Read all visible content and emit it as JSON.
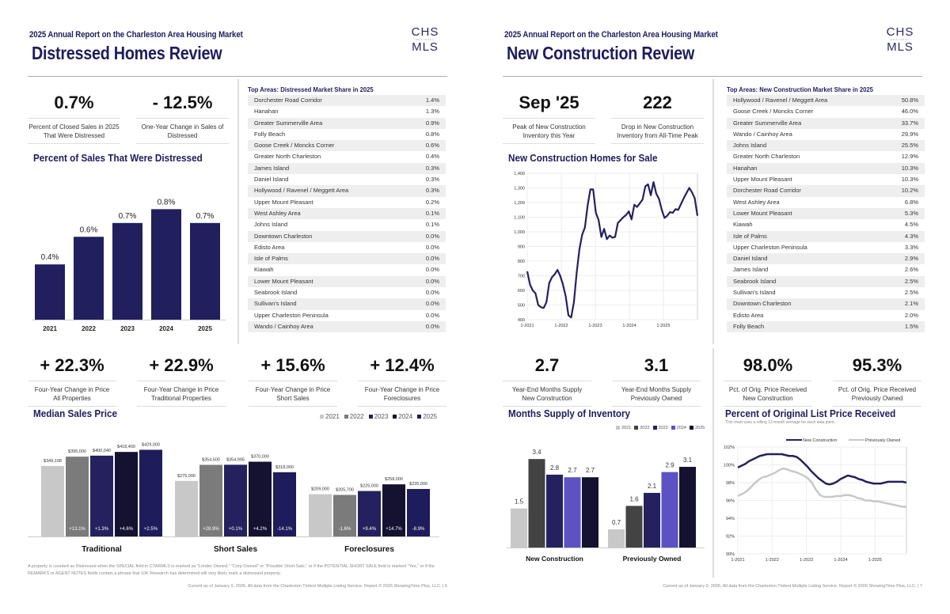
{
  "colors": {
    "brand": "#1f1c5c",
    "bar_navy": "#221f5e",
    "y2021": "#c8c8c8",
    "y2022": "#7b7b7b",
    "y2022_dark": "#434343",
    "y2023": "#24215e",
    "y2024_dark": "#141131",
    "y2024_purple": "#5d52c4",
    "y2025": "#1f1c5c",
    "y2025_dark": "#141131",
    "line_new": "#24215e",
    "line_prev": "#c8c8c8"
  },
  "left": {
    "subtitle": "2025 Annual Report on the Charleston Area Housing Market",
    "title": "Distressed Homes Review",
    "logo": {
      "top": "CHS",
      "mid": "REGIONAL",
      "bottom": "MLS"
    },
    "stats_top": [
      {
        "value": "0.7%",
        "label": "Percent of Closed Sales in 2025 That Were Distressed"
      },
      {
        "value": "- 12.5%",
        "label": "One-Year Change in Sales of Distressed"
      }
    ],
    "distressed_chart_title": "Percent of Sales That Were Distressed",
    "top_areas": {
      "title": "Top Areas: Distressed Market Share in 2025",
      "rows": [
        {
          "area": "Dorchester Road Corridor",
          "value": "1.4%"
        },
        {
          "area": "Hanahan",
          "value": "1.3%"
        },
        {
          "area": "Greater Summerville Area",
          "value": "0.9%"
        },
        {
          "area": "Folly Beach",
          "value": "0.8%"
        },
        {
          "area": "Goose Creek / Moncks Corner",
          "value": "0.6%"
        },
        {
          "area": "Greater North Charleston",
          "value": "0.4%"
        },
        {
          "area": "James Island",
          "value": "0.3%"
        },
        {
          "area": "Daniel Island",
          "value": "0.3%"
        },
        {
          "area": "Hollywood / Ravenel / Meggett Area",
          "value": "0.3%"
        },
        {
          "area": "Upper Mount Pleasant",
          "value": "0.2%"
        },
        {
          "area": "West Ashley Area",
          "value": "0.1%"
        },
        {
          "area": "Johns Island",
          "value": "0.1%"
        },
        {
          "area": "Downtown Charleston",
          "value": "0.0%"
        },
        {
          "area": "Edisto Area",
          "value": "0.0%"
        },
        {
          "area": "Isle of Palms",
          "value": "0.0%"
        },
        {
          "area": "Kiawah",
          "value": "0.0%"
        },
        {
          "area": "Lower Mount Pleasant",
          "value": "0.0%"
        },
        {
          "area": "Seabrook Island",
          "value": "0.0%"
        },
        {
          "area": "Sullivan's Island",
          "value": "0.0%"
        },
        {
          "area": "Upper Charleston Peninsula",
          "value": "0.0%"
        },
        {
          "area": "Wando / Cainhoy Area",
          "value": "0.0%"
        }
      ]
    },
    "stats_bottom": [
      {
        "value": "+ 22.3%",
        "label1": "Four-Year Change in Price",
        "label2": "All Properties"
      },
      {
        "value": "+ 22.9%",
        "label1": "Four-Year Change in Price",
        "label2": "Traditional Properties"
      },
      {
        "value": "+ 15.6%",
        "label1": "Four-Year Change in Price",
        "label2": "Short Sales"
      },
      {
        "value": "+ 12.4%",
        "label1": "Four-Year Change in Price",
        "label2": "Foreclosures"
      }
    ],
    "median_title": "Median Sales Price",
    "footnote": "A property is counted as Distressed when the SPECIAL field in CTARMLS is marked as \"Lender Owned,\" \"Corp Owned\" or \"Possible Short Sale,\" or if the POTENTIAL SHORT SALE field is marked \"Yes,\" or if the REMARKS or AGENT NOTES fields contain a phrase that 10K Research has determined will very likely mark a distressed property.",
    "footer": "Current as of January 9, 2026. All data from the Charleston Trident Multiple Listing Service. Report © 2026 ShowingTime Plus, LLC.  |  6"
  },
  "right": {
    "subtitle": "2025 Annual Report on the Charleston Area Housing Market",
    "title": "New Construction Review",
    "logo": {
      "top": "CHS",
      "mid": "REGIONAL",
      "bottom": "MLS"
    },
    "stats_top": [
      {
        "value": "Sep '25",
        "label": "Peak of New Construction Inventory this Year"
      },
      {
        "value": "222",
        "label": "Drop in New Construction Inventory from All-Time Peak"
      }
    ],
    "inventory_title": "New Construction Homes for Sale",
    "top_areas": {
      "title": "Top Areas: New Construction Market Share in 2025",
      "rows": [
        {
          "area": "Hollywood / Ravenel / Meggett Area",
          "value": "50.8%"
        },
        {
          "area": "Goose Creek / Moncks Corner",
          "value": "46.0%"
        },
        {
          "area": "Greater Summerville Area",
          "value": "33.7%"
        },
        {
          "area": "Wando / Cainhoy Area",
          "value": "29.9%"
        },
        {
          "area": "Johns Island",
          "value": "25.5%"
        },
        {
          "area": "Greater North Charleston",
          "value": "12.9%"
        },
        {
          "area": "Hanahan",
          "value": "10.3%"
        },
        {
          "area": "Upper Mount Pleasant",
          "value": "10.3%"
        },
        {
          "area": "Dorchester Road Corridor",
          "value": "10.2%"
        },
        {
          "area": "West Ashley Area",
          "value": "6.8%"
        },
        {
          "area": "Lower Mount Pleasant",
          "value": "5.3%"
        },
        {
          "area": "Kiawah",
          "value": "4.5%"
        },
        {
          "area": "Isle of Palms",
          "value": "4.3%"
        },
        {
          "area": "Upper Charleston Peninsula",
          "value": "3.3%"
        },
        {
          "area": "Daniel Island",
          "value": "2.9%"
        },
        {
          "area": "James Island",
          "value": "2.6%"
        },
        {
          "area": "Seabrook Island",
          "value": "2.5%"
        },
        {
          "area": "Sullivan's Island",
          "value": "2.5%"
        },
        {
          "area": "Downtown Charleston",
          "value": "2.1%"
        },
        {
          "area": "Edisto Area",
          "value": "2.0%"
        },
        {
          "area": "Folly Beach",
          "value": "1.5%"
        }
      ]
    },
    "stats_bottom": [
      {
        "value": "2.7",
        "label1": "Year-End Months Supply",
        "label2": "New Construction"
      },
      {
        "value": "3.1",
        "label1": "Year-End Months Supply",
        "label2": "Previously Owned"
      },
      {
        "value": "98.0%",
        "label1": "Pct. of Orig. Price Received",
        "label2": "New Construction"
      },
      {
        "value": "95.3%",
        "label1": "Pct. of Orig. Price Received",
        "label2": "Previously Owned"
      }
    ],
    "supply_title": "Months Supply of Inventory",
    "pct_title": "Percent of Original List Price Received",
    "pct_note": "This chart uses a rolling 12-month average for each data point.",
    "footer": "Current as of January 9, 2026. All data from the Charleston Trident Multiple Listing Service. Report © 2026 ShowingTime Plus, LLC.  |  7"
  },
  "chart_data": [
    {
      "id": "distressed",
      "type": "bar",
      "title": "Percent of Sales That Were Distressed",
      "categories": [
        "2021",
        "2022",
        "2023",
        "2024",
        "2025"
      ],
      "values": [
        0.4,
        0.6,
        0.7,
        0.8,
        0.7
      ],
      "value_labels": [
        "0.4%",
        "0.6%",
        "0.7%",
        "0.8%",
        "0.7%"
      ],
      "ylim": [
        0,
        1.1
      ]
    },
    {
      "id": "median",
      "type": "bar",
      "title": "Median Sales Price",
      "legend": [
        "2021",
        "2022",
        "2023",
        "2024",
        "2025"
      ],
      "legend_position": "top-right",
      "categories": [
        "Traditional",
        "Short Sales",
        "Foreclosures"
      ],
      "series": [
        {
          "name": "Traditional",
          "values": [
            349108,
            395000,
            400040,
            418400,
            429000
          ],
          "labels": [
            "$349,108",
            "$395,000",
            "$400,040",
            "$418,400",
            "$429,000"
          ],
          "changes": [
            "",
            "+13.1%",
            "+1.3%",
            "+4.6%",
            "+2.5%"
          ]
        },
        {
          "name": "Short Sales",
          "values": [
            275000,
            354500,
            354995,
            370000,
            318000
          ],
          "labels": [
            "$275,000",
            "$354,500",
            "$354,995",
            "$370,000",
            "$318,000"
          ],
          "changes": [
            "",
            "+28.9%",
            "+0.1%",
            "+4.2%",
            "-14.1%"
          ]
        },
        {
          "name": "Foreclosures",
          "values": [
            209000,
            205700,
            225000,
            258000,
            235000
          ],
          "labels": [
            "$209,000",
            "$205,700",
            "$225,000",
            "$258,000",
            "$235,000"
          ],
          "changes": [
            "",
            "-1.6%",
            "+9.4%",
            "+14.7%",
            "-8.9%"
          ]
        }
      ],
      "ylim": [
        0,
        470000
      ]
    },
    {
      "id": "inventory",
      "type": "line",
      "title": "New Construction Homes for Sale",
      "x_ticks": [
        "1-2021",
        "1-2022",
        "1-2023",
        "1-2024",
        "1-2025"
      ],
      "y_ticks": [
        "400",
        "500",
        "600",
        "700",
        "800",
        "900",
        "1,000",
        "1,100",
        "1,200",
        "1,300",
        "1,400"
      ],
      "ylim": [
        400,
        1400
      ],
      "values": [
        730,
        640,
        600,
        580,
        500,
        485,
        480,
        520,
        650,
        690,
        710,
        740,
        700,
        640,
        560,
        430,
        415,
        520,
        720,
        880,
        980,
        1030,
        1180,
        1290,
        1290,
        1130,
        1080,
        965,
        1020,
        950,
        975,
        960,
        965,
        1060,
        1080,
        1100,
        1115,
        1140,
        1085,
        1185,
        1170,
        1195,
        1220,
        1310,
        1325,
        1250,
        1340,
        1260,
        1225,
        1150,
        1095,
        1110,
        1135,
        1130,
        1155,
        1150,
        1190,
        1230,
        1265,
        1300,
        1270,
        1230,
        1110
      ]
    },
    {
      "id": "supply",
      "type": "bar",
      "title": "Months Supply of Inventory",
      "legend": [
        "2021",
        "2022",
        "2023",
        "2024",
        "2025"
      ],
      "legend_position": "top-right",
      "categories": [
        "New Construction",
        "Previously Owned"
      ],
      "series": [
        {
          "name": "New Construction",
          "values": [
            1.5,
            3.4,
            2.8,
            2.7,
            2.7
          ]
        },
        {
          "name": "Previously Owned",
          "values": [
            0.7,
            1.6,
            2.1,
            2.9,
            3.1
          ]
        }
      ],
      "ylim": [
        0,
        3.8
      ]
    },
    {
      "id": "pct_received",
      "type": "line",
      "title": "Percent of Original List Price Received",
      "legend": [
        "New Construction",
        "Previously Owned"
      ],
      "legend_position": "top",
      "x_ticks": [
        "1-2021",
        "1-2022",
        "1-2023",
        "1-2024",
        "1-2025"
      ],
      "y_ticks": [
        "90%",
        "92%",
        "94%",
        "96%",
        "98%",
        "100%",
        "102%"
      ],
      "ylim": [
        90,
        102
      ],
      "series": [
        {
          "name": "New Construction",
          "values": [
            99.7,
            99.9,
            100.1,
            100.4,
            100.6,
            100.8,
            101.0,
            101.1,
            101.2,
            101.2,
            101.2,
            101.2,
            101.2,
            101.1,
            101.0,
            101.0,
            100.9,
            100.6,
            100.2,
            99.8,
            99.3,
            98.9,
            98.5,
            98.2,
            97.9,
            97.8,
            97.9,
            98.1,
            98.4,
            98.6,
            98.8,
            98.7,
            98.6,
            98.4,
            98.3,
            98.1,
            98.0,
            97.9,
            97.9,
            97.9,
            98.0,
            98.1,
            98.1,
            98.1,
            98.1,
            98.1,
            98.0
          ]
        },
        {
          "name": "Previously Owned",
          "values": [
            96.5,
            96.7,
            97.0,
            97.4,
            97.9,
            98.3,
            98.6,
            98.7,
            98.9,
            99.1,
            99.4,
            99.6,
            99.5,
            99.3,
            99.2,
            99.0,
            98.8,
            98.5,
            98.0,
            97.2,
            96.6,
            96.4,
            96.4,
            96.4,
            96.5,
            96.5,
            96.6,
            96.6,
            96.5,
            96.3,
            96.2,
            96.0,
            96.0,
            95.9,
            95.9,
            95.8,
            95.7,
            95.6,
            95.5,
            95.4,
            95.3,
            95.3
          ]
        }
      ]
    }
  ]
}
